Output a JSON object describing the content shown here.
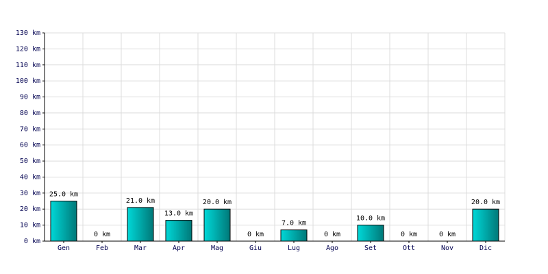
{
  "chart_data": {
    "type": "bar",
    "categories": [
      "Gen",
      "Feb",
      "Mar",
      "Apr",
      "Mag",
      "Giu",
      "Lug",
      "Ago",
      "Set",
      "Ott",
      "Nov",
      "Dic"
    ],
    "values": [
      25,
      0,
      21,
      13,
      20,
      0,
      7,
      0,
      10,
      0,
      0,
      20
    ],
    "value_labels": [
      "25.0 km",
      "0 km",
      "21.0 km",
      "13.0 km",
      "20.0 km",
      "0 km",
      "7.0 km",
      "0 km",
      "10.0 km",
      "0 km",
      "0 km",
      "20.0 km"
    ],
    "color": "#00d8d8",
    "ylim": [
      0,
      130
    ],
    "yticks": [
      {
        "value": 0,
        "label": "0 km"
      },
      {
        "value": 10,
        "label": "10 km"
      },
      {
        "value": 20,
        "label": "20 km"
      },
      {
        "value": 30,
        "label": "30 km"
      },
      {
        "value": 40,
        "label": "40 km"
      },
      {
        "value": 50,
        "label": "50 km"
      },
      {
        "value": 60,
        "label": "60 km"
      },
      {
        "value": 70,
        "label": "70 km"
      },
      {
        "value": 80,
        "label": "80 km"
      },
      {
        "value": 90,
        "label": "90 km"
      },
      {
        "value": 100,
        "label": "100 km"
      },
      {
        "value": 110,
        "label": "110 km"
      },
      {
        "value": 120,
        "label": "120 km"
      },
      {
        "value": 130,
        "label": "130 km"
      }
    ],
    "grid": true
  }
}
